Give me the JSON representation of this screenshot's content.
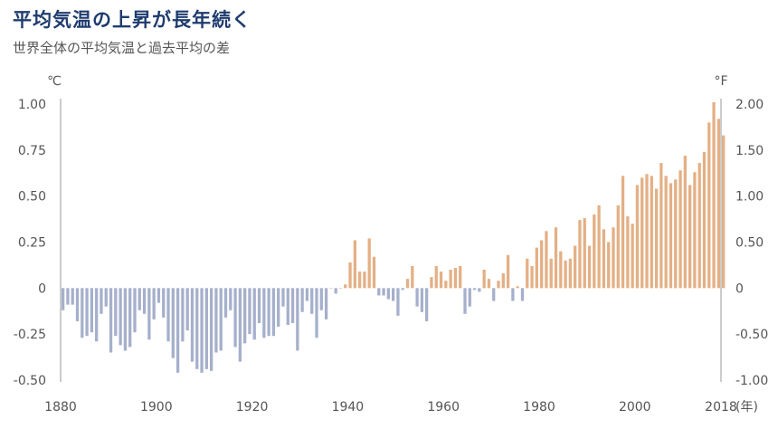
{
  "header": {
    "title": "平均気温の上昇が長年続く",
    "subtitle": "世界全体の平均気温と過去平均の差"
  },
  "colors": {
    "negative": "#a6b0cc",
    "positive": "#e4b085",
    "axis": "#999999",
    "text": "#555555"
  },
  "chart_data": {
    "type": "bar",
    "title": "平均気温の上昇が長年続く",
    "subtitle": "世界全体の平均気温と過去平均の差",
    "ylabel_left": "℃",
    "ylabel_right": "°F",
    "x_unit_label": "(年)",
    "ylim": [
      -0.5,
      1.0
    ],
    "ylim_right": [
      -1.0,
      2.0
    ],
    "y_ticks_left": [
      "1.00",
      "0.75",
      "0.50",
      "0.25",
      "0",
      "-0.25",
      "-0.50"
    ],
    "y_ticks_right": [
      "2.00",
      "1.50",
      "1.00",
      "0.50",
      "0",
      "-0.50",
      "-1.00"
    ],
    "x_ticks": [
      "1880",
      "1900",
      "1920",
      "1940",
      "1960",
      "1980",
      "2000",
      "2018"
    ],
    "grid": false,
    "x_start": 1880,
    "x_end": 2018,
    "values": [
      -0.12,
      -0.09,
      -0.09,
      -0.18,
      -0.27,
      -0.26,
      -0.24,
      -0.29,
      -0.14,
      -0.1,
      -0.35,
      -0.26,
      -0.31,
      -0.34,
      -0.32,
      -0.24,
      -0.12,
      -0.14,
      -0.28,
      -0.17,
      -0.08,
      -0.16,
      -0.29,
      -0.38,
      -0.46,
      -0.29,
      -0.23,
      -0.4,
      -0.44,
      -0.46,
      -0.44,
      -0.45,
      -0.35,
      -0.34,
      -0.16,
      -0.12,
      -0.32,
      -0.4,
      -0.3,
      -0.25,
      -0.28,
      -0.19,
      -0.27,
      -0.26,
      -0.26,
      -0.21,
      -0.1,
      -0.2,
      -0.19,
      -0.34,
      -0.13,
      -0.07,
      -0.14,
      -0.27,
      -0.12,
      -0.17,
      0.0,
      -0.03,
      0.0,
      0.02,
      0.14,
      0.26,
      0.09,
      0.09,
      0.27,
      0.17,
      -0.04,
      -0.04,
      -0.06,
      -0.07,
      -0.15,
      -0.01,
      0.05,
      0.12,
      -0.1,
      -0.13,
      -0.18,
      0.06,
      0.12,
      0.09,
      0.04,
      0.1,
      0.11,
      0.12,
      -0.14,
      -0.1,
      -0.01,
      -0.02,
      0.1,
      0.05,
      -0.07,
      0.04,
      0.08,
      0.18,
      -0.07,
      0.01,
      -0.07,
      0.16,
      0.12,
      0.22,
      0.26,
      0.31,
      0.16,
      0.33,
      0.2,
      0.15,
      0.16,
      0.23,
      0.37,
      0.38,
      0.23,
      0.4,
      0.45,
      0.32,
      0.25,
      0.33,
      0.45,
      0.61,
      0.39,
      0.35,
      0.56,
      0.6,
      0.62,
      0.61,
      0.54,
      0.68,
      0.61,
      0.57,
      0.59,
      0.64,
      0.72,
      0.56,
      0.63,
      0.68,
      0.74,
      0.9,
      1.01,
      0.92,
      0.83
    ]
  }
}
